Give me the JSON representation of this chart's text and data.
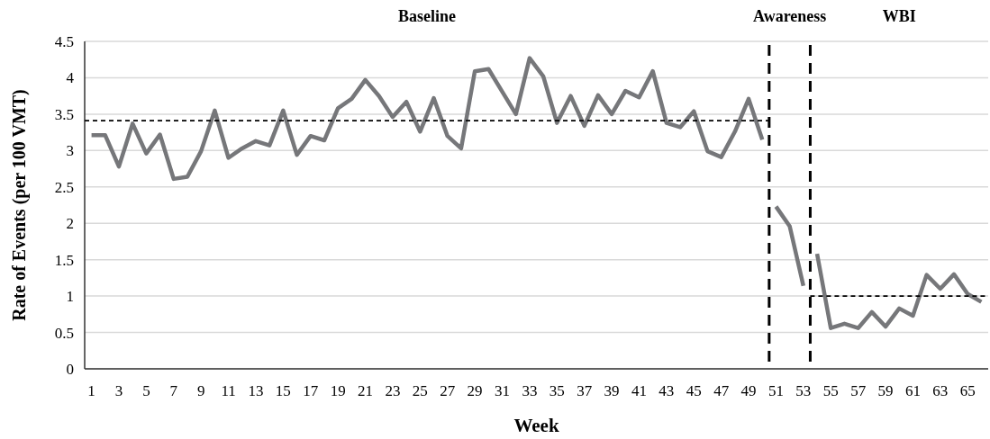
{
  "chart_data": {
    "type": "line",
    "xlabel": "Week",
    "ylabel": "Rate of Events (per 100 VMT)",
    "xlim": [
      0.5,
      66.5
    ],
    "xticks": [
      1,
      3,
      5,
      7,
      9,
      11,
      13,
      15,
      17,
      19,
      21,
      23,
      25,
      27,
      29,
      31,
      33,
      35,
      37,
      39,
      41,
      43,
      45,
      47,
      49,
      51,
      53,
      55,
      57,
      59,
      61,
      63,
      65
    ],
    "ylim": [
      0,
      4.5
    ],
    "yticks": [
      0,
      0.5,
      1,
      1.5,
      2,
      2.5,
      3,
      3.5,
      4,
      4.5
    ],
    "grid": "y",
    "series": [
      {
        "color": "#76777a",
        "line_style": "solid",
        "x": [
          1,
          2,
          3,
          4,
          5,
          6,
          7,
          8,
          9,
          10,
          11,
          12,
          13,
          14,
          15,
          16,
          17,
          18,
          19,
          20,
          21,
          22,
          23,
          24,
          25,
          26,
          27,
          28,
          29,
          30,
          31,
          32,
          33,
          34,
          35,
          36,
          37,
          38,
          39,
          40,
          41,
          42,
          43,
          44,
          45,
          46,
          47,
          48,
          49,
          50
        ],
        "values": [
          3.21,
          3.21,
          2.78,
          3.37,
          2.96,
          3.22,
          2.61,
          2.64,
          2.99,
          3.55,
          2.9,
          3.03,
          3.13,
          3.07,
          3.55,
          2.94,
          3.2,
          3.14,
          3.58,
          3.71,
          3.97,
          3.75,
          3.46,
          3.67,
          3.26,
          3.72,
          3.2,
          3.03,
          4.09,
          4.12,
          3.81,
          3.5,
          4.27,
          4.02,
          3.38,
          3.75,
          3.34,
          3.76,
          3.5,
          3.82,
          3.73,
          4.09,
          3.38,
          3.32,
          3.54,
          2.99,
          2.91,
          3.26,
          3.71,
          3.15
        ]
      },
      {
        "color": "#76777a",
        "line_style": "solid",
        "x": [
          51,
          52,
          53
        ],
        "values": [
          2.23,
          1.96,
          1.14
        ]
      },
      {
        "color": "#76777a",
        "line_style": "solid",
        "x": [
          54,
          55,
          56,
          57,
          58,
          59,
          60,
          61,
          62,
          63,
          64,
          65,
          66
        ],
        "values": [
          1.58,
          0.56,
          0.62,
          0.56,
          0.78,
          0.58,
          0.83,
          0.73,
          1.29,
          1.1,
          1.3,
          1.03,
          0.92
        ]
      },
      {
        "color": "#000000",
        "line_style": "dashed",
        "x": [
          0.5,
          50.5
        ],
        "values": [
          3.41,
          3.41
        ]
      },
      {
        "color": "#000000",
        "line_style": "dashed",
        "x": [
          53.5,
          66.5
        ],
        "values": [
          1,
          1
        ]
      }
    ],
    "ref_lines": [
      {
        "axis": "x",
        "value": 50.5,
        "color": "#000000",
        "line_style": "dashed"
      },
      {
        "axis": "x",
        "value": 53.5,
        "color": "#000000",
        "line_style": "dashed"
      }
    ],
    "annotations": [
      "Baseline",
      "Awareness",
      "WBI"
    ]
  }
}
